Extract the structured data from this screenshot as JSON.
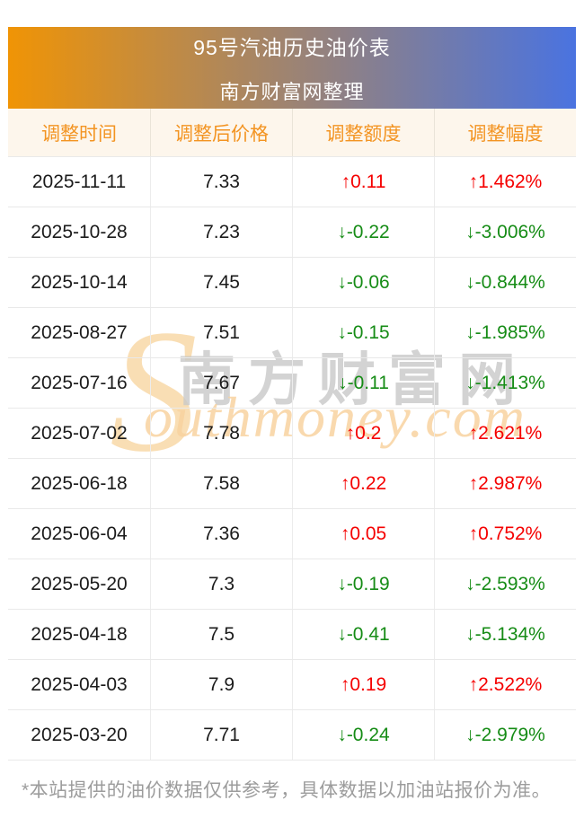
{
  "banner": {
    "title": "95号汽油历史油价表",
    "subtitle": "南方财富网整理"
  },
  "table": {
    "columns": [
      "调整时间",
      "调整后价格",
      "调整额度",
      "调整幅度"
    ],
    "rows": [
      {
        "date": "2025-11-11",
        "price": "7.33",
        "change": "0.11",
        "percent": "1.462%",
        "direction": "up"
      },
      {
        "date": "2025-10-28",
        "price": "7.23",
        "change": "-0.22",
        "percent": "-3.006%",
        "direction": "down"
      },
      {
        "date": "2025-10-14",
        "price": "7.45",
        "change": "-0.06",
        "percent": "-0.844%",
        "direction": "down"
      },
      {
        "date": "2025-08-27",
        "price": "7.51",
        "change": "-0.15",
        "percent": "-1.985%",
        "direction": "down"
      },
      {
        "date": "2025-07-16",
        "price": "7.67",
        "change": "-0.11",
        "percent": "-1.413%",
        "direction": "down"
      },
      {
        "date": "2025-07-02",
        "price": "7.78",
        "change": "0.2",
        "percent": "2.621%",
        "direction": "up"
      },
      {
        "date": "2025-06-18",
        "price": "7.58",
        "change": "0.22",
        "percent": "2.987%",
        "direction": "up"
      },
      {
        "date": "2025-06-04",
        "price": "7.36",
        "change": "0.05",
        "percent": "0.752%",
        "direction": "up"
      },
      {
        "date": "2025-05-20",
        "price": "7.3",
        "change": "-0.19",
        "percent": "-2.593%",
        "direction": "down"
      },
      {
        "date": "2025-04-18",
        "price": "7.5",
        "change": "-0.41",
        "percent": "-5.134%",
        "direction": "down"
      },
      {
        "date": "2025-04-03",
        "price": "7.9",
        "change": "0.19",
        "percent": "2.522%",
        "direction": "up"
      },
      {
        "date": "2025-03-20",
        "price": "7.71",
        "change": "-0.24",
        "percent": "-2.979%",
        "direction": "down"
      }
    ]
  },
  "arrows": {
    "up": "↑",
    "down": "↓"
  },
  "watermark": {
    "initial": "S",
    "latin": "outhmoney.com",
    "chinese": "南方财富网"
  },
  "footer": {
    "note": "*本站提供的油价数据仅供参考，具体数据以加油站报价为准。"
  },
  "colors": {
    "up_red": "#f50000",
    "down_green": "#168c16",
    "banner_gradient_left": "#f09405",
    "banner_gradient_right": "#4a73e0",
    "header_bg": "#fdf6ec",
    "header_text": "#f39422",
    "footnote_gray": "#9c9c9c"
  },
  "chart_data": {
    "type": "table",
    "title": "95号汽油历史油价表",
    "subtitle": "南方财富网整理",
    "columns": [
      "调整时间",
      "调整后价格",
      "调整额度",
      "调整幅度"
    ],
    "rows": [
      [
        "2025-11-11",
        "7.33",
        "↑0.11",
        "↑1.462%"
      ],
      [
        "2025-10-28",
        "7.23",
        "↓-0.22",
        "↓-3.006%"
      ],
      [
        "2025-10-14",
        "7.45",
        "↓-0.06",
        "↓-0.844%"
      ],
      [
        "2025-08-27",
        "7.51",
        "↓-0.15",
        "↓-1.985%"
      ],
      [
        "2025-07-16",
        "7.67",
        "↓-0.11",
        "↓-1.413%"
      ],
      [
        "2025-07-02",
        "7.78",
        "↑0.2",
        "↑2.621%"
      ],
      [
        "2025-06-18",
        "7.58",
        "↑0.22",
        "↑2.987%"
      ],
      [
        "2025-06-04",
        "7.36",
        "↑0.05",
        "↑0.752%"
      ],
      [
        "2025-05-20",
        "7.3",
        "↓-0.19",
        "↓-2.593%"
      ],
      [
        "2025-04-18",
        "7.5",
        "↓-0.41",
        "↓-5.134%"
      ],
      [
        "2025-04-03",
        "7.9",
        "↑0.19",
        "↑2.522%"
      ],
      [
        "2025-03-20",
        "7.71",
        "↓-0.24",
        "↓-2.979%"
      ]
    ]
  }
}
